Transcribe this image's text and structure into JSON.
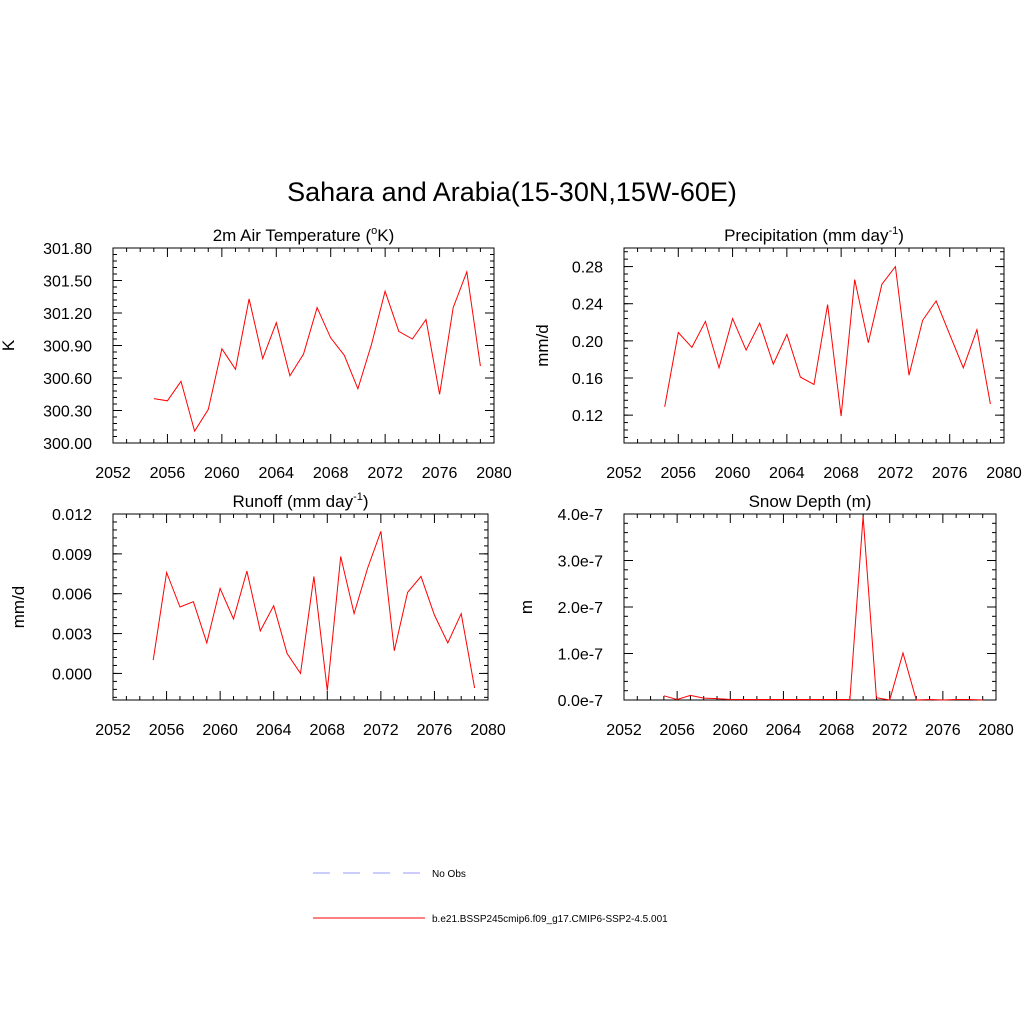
{
  "main_title": "Sahara and Arabia(15-30N,15W-60E)",
  "legend": [
    {
      "label": "No Obs",
      "color": "#9999ff",
      "style": "dashed"
    },
    {
      "label": "b.e21.BSSP245cmip6.f09_g17.CMIP6-SSP2-4.5.001",
      "color": "#ff0000",
      "style": "solid"
    }
  ],
  "chart_data": [
    {
      "type": "line",
      "title": "2m Air Temperature (",
      "title_sup": "o",
      "title_after": "K)",
      "ylabel": "K",
      "xlim": [
        2052,
        2080
      ],
      "ylim": [
        300.0,
        301.8
      ],
      "xticks": [
        "2052",
        "2056",
        "2060",
        "2064",
        "2068",
        "2072",
        "2076",
        "2080"
      ],
      "yticks": [
        "300.00",
        "300.30",
        "300.60",
        "300.90",
        "301.20",
        "301.50",
        "301.80"
      ],
      "series": [
        {
          "color": "#ff0000",
          "x": [
            2055,
            2056,
            2057,
            2058,
            2059,
            2060,
            2061,
            2062,
            2063,
            2064,
            2065,
            2066,
            2067,
            2068,
            2069,
            2070,
            2071,
            2072,
            2073,
            2074,
            2075,
            2076,
            2077,
            2078,
            2079
          ],
          "values": [
            300.41,
            300.39,
            300.57,
            300.11,
            300.31,
            300.87,
            300.68,
            301.33,
            300.78,
            301.11,
            300.62,
            300.82,
            301.25,
            300.97,
            300.81,
            300.5,
            300.91,
            301.4,
            301.03,
            300.96,
            301.14,
            300.45,
            301.25,
            301.58,
            300.71
          ]
        }
      ]
    },
    {
      "type": "line",
      "title": "Precipitation (mm day",
      "title_sup": "-1",
      "title_after": ")",
      "ylabel": "mm/d",
      "xlim": [
        2052,
        2080
      ],
      "ylim": [
        0.09,
        0.3
      ],
      "xticks": [
        "2052",
        "2056",
        "2060",
        "2064",
        "2068",
        "2072",
        "2076",
        "2080"
      ],
      "yticks": [
        "0.12",
        "0.16",
        "0.20",
        "0.24",
        "0.28"
      ],
      "series": [
        {
          "color": "#ff0000",
          "x": [
            2055,
            2056,
            2057,
            2058,
            2059,
            2060,
            2061,
            2062,
            2063,
            2064,
            2065,
            2066,
            2067,
            2068,
            2069,
            2070,
            2071,
            2072,
            2073,
            2074,
            2075,
            2076,
            2077,
            2078,
            2079
          ],
          "values": [
            0.129,
            0.209,
            0.193,
            0.221,
            0.171,
            0.224,
            0.19,
            0.219,
            0.175,
            0.207,
            0.161,
            0.153,
            0.239,
            0.119,
            0.266,
            0.198,
            0.261,
            0.28,
            0.163,
            0.222,
            0.243,
            0.207,
            0.171,
            0.212,
            0.132
          ]
        }
      ]
    },
    {
      "type": "line",
      "title": "Runoff (mm day",
      "title_sup": "-1",
      "title_after": ")",
      "ylabel": "mm/d",
      "xlim": [
        2052,
        2080
      ],
      "ylim": [
        -0.002,
        0.012
      ],
      "xticks": [
        "2052",
        "2056",
        "2060",
        "2064",
        "2068",
        "2072",
        "2076",
        "2080"
      ],
      "yticks": [
        "0.000",
        "0.003",
        "0.006",
        "0.009",
        "0.012"
      ],
      "series": [
        {
          "color": "#ff0000",
          "x": [
            2055,
            2056,
            2057,
            2058,
            2059,
            2060,
            2061,
            2062,
            2063,
            2064,
            2065,
            2066,
            2067,
            2068,
            2069,
            2070,
            2071,
            2072,
            2073,
            2074,
            2075,
            2076,
            2077,
            2078,
            2079
          ],
          "values": [
            0.001,
            0.0076,
            0.005,
            0.0054,
            0.0023,
            0.0064,
            0.0041,
            0.0077,
            0.0032,
            0.0051,
            0.0015,
            0.0,
            0.0073,
            -0.0013,
            0.0088,
            0.0045,
            0.0079,
            0.0107,
            0.0017,
            0.0061,
            0.0073,
            0.0044,
            0.0023,
            0.0045,
            -0.0011
          ]
        }
      ]
    },
    {
      "type": "line",
      "title": "Snow Depth (m)",
      "title_sup": "",
      "title_after": "",
      "ylabel": "m",
      "xlim": [
        2052,
        2080
      ],
      "ylim": [
        0.0,
        4e-07
      ],
      "xticks": [
        "2052",
        "2056",
        "2060",
        "2064",
        "2068",
        "2072",
        "2076",
        "2080"
      ],
      "yticks": [
        "0.0e-7",
        "1.0e-7",
        "2.0e-7",
        "3.0e-7",
        "4.0e-7"
      ],
      "series": [
        {
          "color": "#ff0000",
          "x": [
            2055,
            2056,
            2057,
            2058,
            2059,
            2060,
            2061,
            2062,
            2063,
            2064,
            2065,
            2066,
            2067,
            2068,
            2069,
            2070,
            2071,
            2072,
            2073,
            2074,
            2075,
            2076,
            2077,
            2078,
            2079
          ],
          "values": [
            9e-09,
            1e-09,
            1e-08,
            4e-09,
            3e-09,
            1e-09,
            1e-09,
            1e-09,
            1e-09,
            1e-09,
            1e-09,
            1e-09,
            1e-09,
            1e-09,
            1e-09,
            3.95e-07,
            5e-09,
            0.0,
            1.01e-07,
            0.0,
            1e-09,
            0.0,
            1e-09,
            1e-09,
            0.0
          ]
        }
      ]
    }
  ]
}
